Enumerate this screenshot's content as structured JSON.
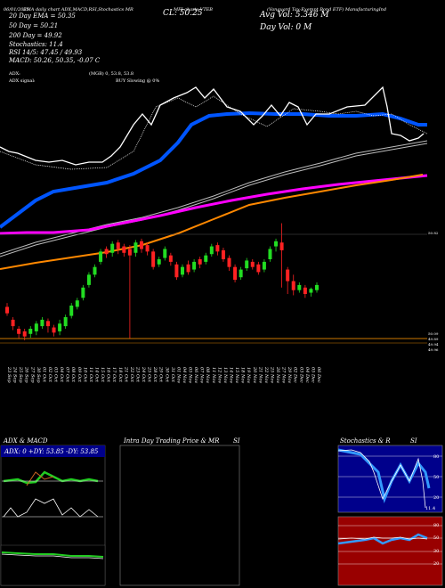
{
  "header": {
    "top_left_date": "06/01/2025",
    "indicators_text": "EMA daily chart ADX,MACD,RSI,Stochastics MR",
    "symbol_text": "MFI charts VTEB",
    "fund_name": "(Vanguard Tax-Exempt Bond ETF) ManufacturingInd",
    "close_label": "CL: 50.25",
    "avg_vol_label": "Avg Vol: 5.346  M",
    "day_vol_label": "Day Vol: 0  M",
    "ema20": "20  Day EMA = 50.35",
    "ema50": "50  Day = 50.21",
    "ema200": "200  Day = 49.92",
    "stochastics": "Stochastics: 11.4",
    "rsi": "RSI 14/5: 47.45 / 49.93",
    "macd": "MACD: 50.26, 50.35, -0.07 C",
    "adx": "ADX: ",
    "adx_values": "(MGB) 0, 53.8, 53.8",
    "adx_signal": "ADX signal:",
    "buy_signal": "BUY Slowing @ 0%"
  },
  "right_price_labels": [
    "50.82",
    "50.09",
    "49.89",
    "49.94",
    "49.96"
  ],
  "colors": {
    "ema20": "#0055ff",
    "ema50": "#ff00ff",
    "ema200": "#ff8800",
    "up": "#22dd22",
    "down": "#ff2222",
    "close_line": "#ffffff"
  },
  "chart_data": {
    "type": "candlestick",
    "x_dates": [
      "23 Sep",
      "24 Sep",
      "25 Sep",
      "26 Sep",
      "27 Sep",
      "30 Sep",
      "01 Oct",
      "02 Oct",
      "03 Oct",
      "04 Oct",
      "07 Oct",
      "08 Oct",
      "09 Oct",
      "10 Oct",
      "11 Oct",
      "14 Oct",
      "15 Oct",
      "16 Oct",
      "17 Oct",
      "18 Oct",
      "21 Oct",
      "22 Oct",
      "23 Oct",
      "24 Oct",
      "25 Oct",
      "28 Oct",
      "29 Oct",
      "30 Oct",
      "31 Oct",
      "01 Nov",
      "04 Nov",
      "05 Nov",
      "06 Nov",
      "07 Nov",
      "08 Nov",
      "11 Nov",
      "12 Nov",
      "13 Nov",
      "14 Nov",
      "15 Nov",
      "18 Nov",
      "19 Nov",
      "20 Nov",
      "21 Nov",
      "22 Nov",
      "25 Nov",
      "26 Nov",
      "27 Nov",
      "29 Nov",
      "02 Dec",
      "03 Dec",
      "04 Dec",
      "05 Dec",
      "06 Dec"
    ],
    "candles": [
      {
        "o": 49.55,
        "c": 49.5,
        "h": 49.58,
        "l": 49.48
      },
      {
        "o": 49.45,
        "c": 49.4,
        "h": 49.47,
        "l": 49.37
      },
      {
        "o": 49.38,
        "c": 49.34,
        "h": 49.4,
        "l": 49.3
      },
      {
        "o": 49.36,
        "c": 49.32,
        "h": 49.38,
        "l": 49.29
      },
      {
        "o": 49.34,
        "c": 49.38,
        "h": 49.4,
        "l": 49.31
      },
      {
        "o": 49.36,
        "c": 49.42,
        "h": 49.44,
        "l": 49.33
      },
      {
        "o": 49.4,
        "c": 49.45,
        "h": 49.47,
        "l": 49.38
      },
      {
        "o": 49.44,
        "c": 49.4,
        "h": 49.46,
        "l": 49.35
      },
      {
        "o": 49.39,
        "c": 49.35,
        "h": 49.41,
        "l": 49.32
      },
      {
        "o": 49.36,
        "c": 49.42,
        "h": 49.45,
        "l": 49.33
      },
      {
        "o": 49.4,
        "c": 49.47,
        "h": 49.49,
        "l": 49.38
      },
      {
        "o": 49.48,
        "c": 49.56,
        "h": 49.58,
        "l": 49.46
      },
      {
        "o": 49.55,
        "c": 49.6,
        "h": 49.62,
        "l": 49.53
      },
      {
        "o": 49.62,
        "c": 49.7,
        "h": 49.72,
        "l": 49.6
      },
      {
        "o": 49.72,
        "c": 49.8,
        "h": 49.82,
        "l": 49.7
      },
      {
        "o": 49.8,
        "c": 49.86,
        "h": 49.88,
        "l": 49.78
      },
      {
        "o": 49.9,
        "c": 49.98,
        "h": 50.0,
        "l": 49.88
      },
      {
        "o": 50.0,
        "c": 49.96,
        "h": 50.02,
        "l": 49.93
      },
      {
        "o": 49.97,
        "c": 50.04,
        "h": 50.06,
        "l": 49.94
      },
      {
        "o": 50.05,
        "c": 50.0,
        "h": 50.07,
        "l": 49.96
      },
      {
        "o": 50.02,
        "c": 49.97,
        "h": 50.04,
        "l": 49.94
      },
      {
        "o": 50.0,
        "c": 49.95,
        "h": 50.03,
        "l": 49.3
      },
      {
        "o": 49.97,
        "c": 50.05,
        "h": 50.07,
        "l": 49.94
      },
      {
        "o": 50.06,
        "c": 50.0,
        "h": 50.08,
        "l": 49.97
      },
      {
        "o": 50.03,
        "c": 49.98,
        "h": 50.05,
        "l": 49.95
      },
      {
        "o": 49.98,
        "c": 49.86,
        "h": 50.0,
        "l": 49.84
      },
      {
        "o": 49.88,
        "c": 49.92,
        "h": 49.94,
        "l": 49.86
      },
      {
        "o": 49.93,
        "c": 50.0,
        "h": 50.02,
        "l": 49.91
      },
      {
        "o": 49.95,
        "c": 49.9,
        "h": 49.97,
        "l": 49.87
      },
      {
        "o": 49.88,
        "c": 49.78,
        "h": 49.9,
        "l": 49.76
      },
      {
        "o": 49.8,
        "c": 49.86,
        "h": 49.88,
        "l": 49.78
      },
      {
        "o": 49.88,
        "c": 49.82,
        "h": 49.91,
        "l": 49.8
      },
      {
        "o": 49.84,
        "c": 49.9,
        "h": 49.92,
        "l": 49.82
      },
      {
        "o": 49.92,
        "c": 49.88,
        "h": 49.94,
        "l": 49.85
      },
      {
        "o": 49.9,
        "c": 49.95,
        "h": 49.97,
        "l": 49.88
      },
      {
        "o": 49.96,
        "c": 50.02,
        "h": 50.04,
        "l": 49.94
      },
      {
        "o": 50.03,
        "c": 49.98,
        "h": 50.05,
        "l": 49.95
      },
      {
        "o": 49.99,
        "c": 49.92,
        "h": 50.01,
        "l": 49.9
      },
      {
        "o": 49.93,
        "c": 49.86,
        "h": 49.95,
        "l": 49.83
      },
      {
        "o": 49.86,
        "c": 49.76,
        "h": 49.88,
        "l": 49.74
      },
      {
        "o": 49.78,
        "c": 49.84,
        "h": 49.86,
        "l": 49.76
      },
      {
        "o": 49.85,
        "c": 49.91,
        "h": 49.93,
        "l": 49.83
      },
      {
        "o": 49.9,
        "c": 49.86,
        "h": 49.92,
        "l": 49.84
      },
      {
        "o": 49.88,
        "c": 49.82,
        "h": 49.9,
        "l": 49.8
      },
      {
        "o": 49.84,
        "c": 49.9,
        "h": 49.92,
        "l": 49.82
      },
      {
        "o": 49.92,
        "c": 50.0,
        "h": 50.02,
        "l": 49.9
      },
      {
        "o": 50.02,
        "c": 50.06,
        "h": 50.08,
        "l": 49.98
      },
      {
        "o": 50.05,
        "c": 49.99,
        "h": 50.2,
        "l": 49.7
      },
      {
        "o": 49.84,
        "c": 49.75,
        "h": 49.86,
        "l": 49.65
      },
      {
        "o": 49.75,
        "c": 49.68,
        "h": 49.8,
        "l": 49.64
      },
      {
        "o": 49.68,
        "c": 49.72,
        "h": 49.74,
        "l": 49.66
      },
      {
        "o": 49.7,
        "c": 49.65,
        "h": 49.72,
        "l": 49.62
      },
      {
        "o": 49.66,
        "c": 49.69,
        "h": 49.7,
        "l": 49.63
      },
      {
        "o": 49.68,
        "c": 49.72,
        "h": 49.74,
        "l": 49.66
      }
    ],
    "ylim": [
      48.9,
      51.2
    ],
    "ylabel": "",
    "xlabel": ""
  },
  "panels": {
    "adx_title": "ADX  & MACD",
    "adx_stats": "ADX: 0  +DY: 53.85  -DY: 53.85",
    "intraday_title": "Intra Day Trading Price  & MR",
    "intraday_si": "SI",
    "stoch_title": "Stochastics & R",
    "stoch_si": "SI",
    "stoch_levels": [
      "80",
      "50",
      "20"
    ],
    "stoch_value": "11.4",
    "rsi_levels": [
      "80",
      "50",
      "30",
      "20"
    ]
  }
}
